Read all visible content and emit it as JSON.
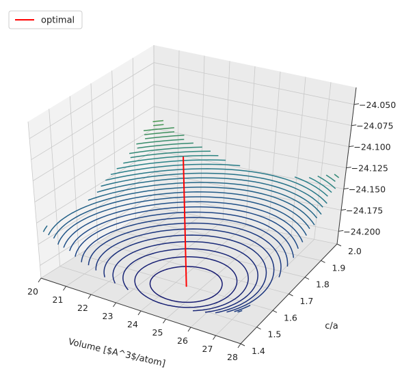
{
  "chart_data": {
    "type": "surface3d",
    "title": "",
    "xlabel": "Volume [$A^3$/atom]",
    "ylabel": "c/a",
    "zlabel": "",
    "x_ticks": [
      20,
      21,
      22,
      23,
      24,
      25,
      26,
      27,
      28
    ],
    "y_ticks": [
      1.4,
      1.5,
      1.6,
      1.7,
      1.8,
      1.9,
      2.0
    ],
    "z_ticks": [
      "−24.050",
      "−24.075",
      "−24.100",
      "−24.125",
      "−24.150",
      "−24.175",
      "−24.200"
    ],
    "xlim": [
      20,
      28
    ],
    "ylim": [
      1.4,
      2.0
    ],
    "zlim": [
      -24.215,
      -24.03
    ],
    "grid": true,
    "colormap": "gist_earth",
    "surface": {
      "z_min": -24.205,
      "minimum_at": {
        "volume": 24.8,
        "c_over_a": 1.55
      },
      "curvature_volume": 0.0019,
      "curvature_c_over_a": 0.28
    },
    "optimal": {
      "name": "optimal",
      "color": "#ff0000",
      "volume": 24.8,
      "c_over_a": 1.55,
      "z_range": [
        -24.205,
        -24.055
      ]
    },
    "legend": {
      "position": "top-left",
      "entries": [
        "optimal"
      ]
    }
  }
}
